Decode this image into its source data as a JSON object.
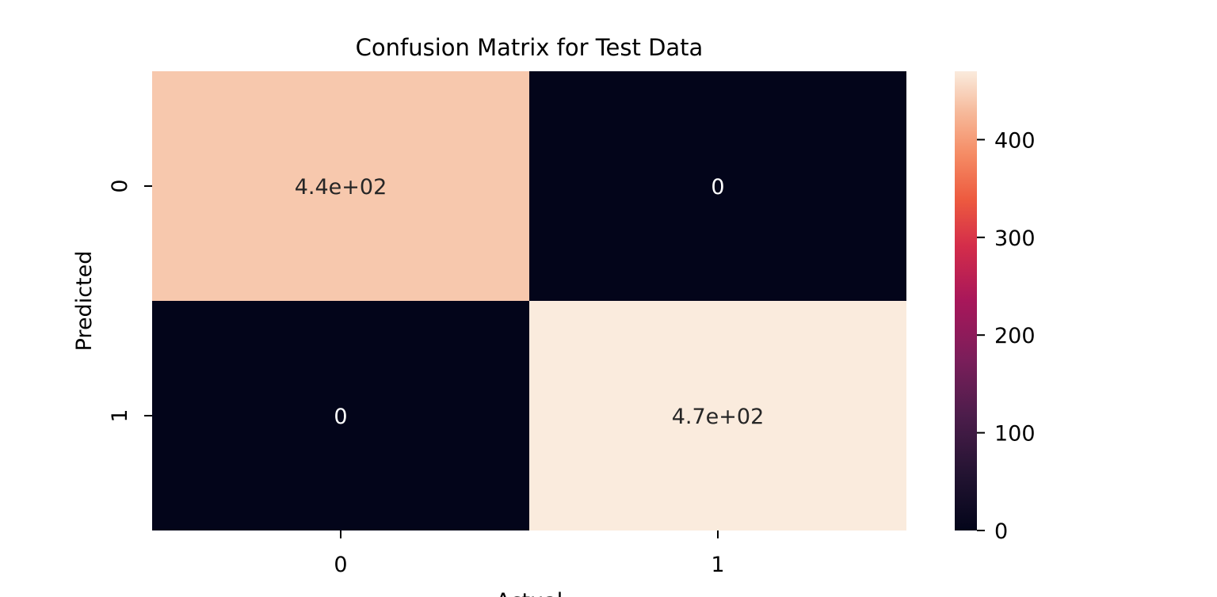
{
  "chart_data": {
    "type": "heatmap",
    "title": "Confusion Matrix for Test Data",
    "xlabel": "Actual",
    "ylabel": "Predicted",
    "x_categories": [
      "0",
      "1"
    ],
    "y_categories": [
      "0",
      "1"
    ],
    "values": [
      [
        440,
        0
      ],
      [
        0,
        470
      ]
    ],
    "annotations": [
      [
        "4.4e+02",
        "0"
      ],
      [
        "0",
        "4.7e+02"
      ]
    ],
    "colorbar": {
      "min": 0,
      "max": 470,
      "ticks": [
        0,
        100,
        200,
        300,
        400
      ],
      "tick_labels": [
        "0",
        "100",
        "200",
        "300",
        "400"
      ],
      "colormap": "rocket"
    }
  }
}
